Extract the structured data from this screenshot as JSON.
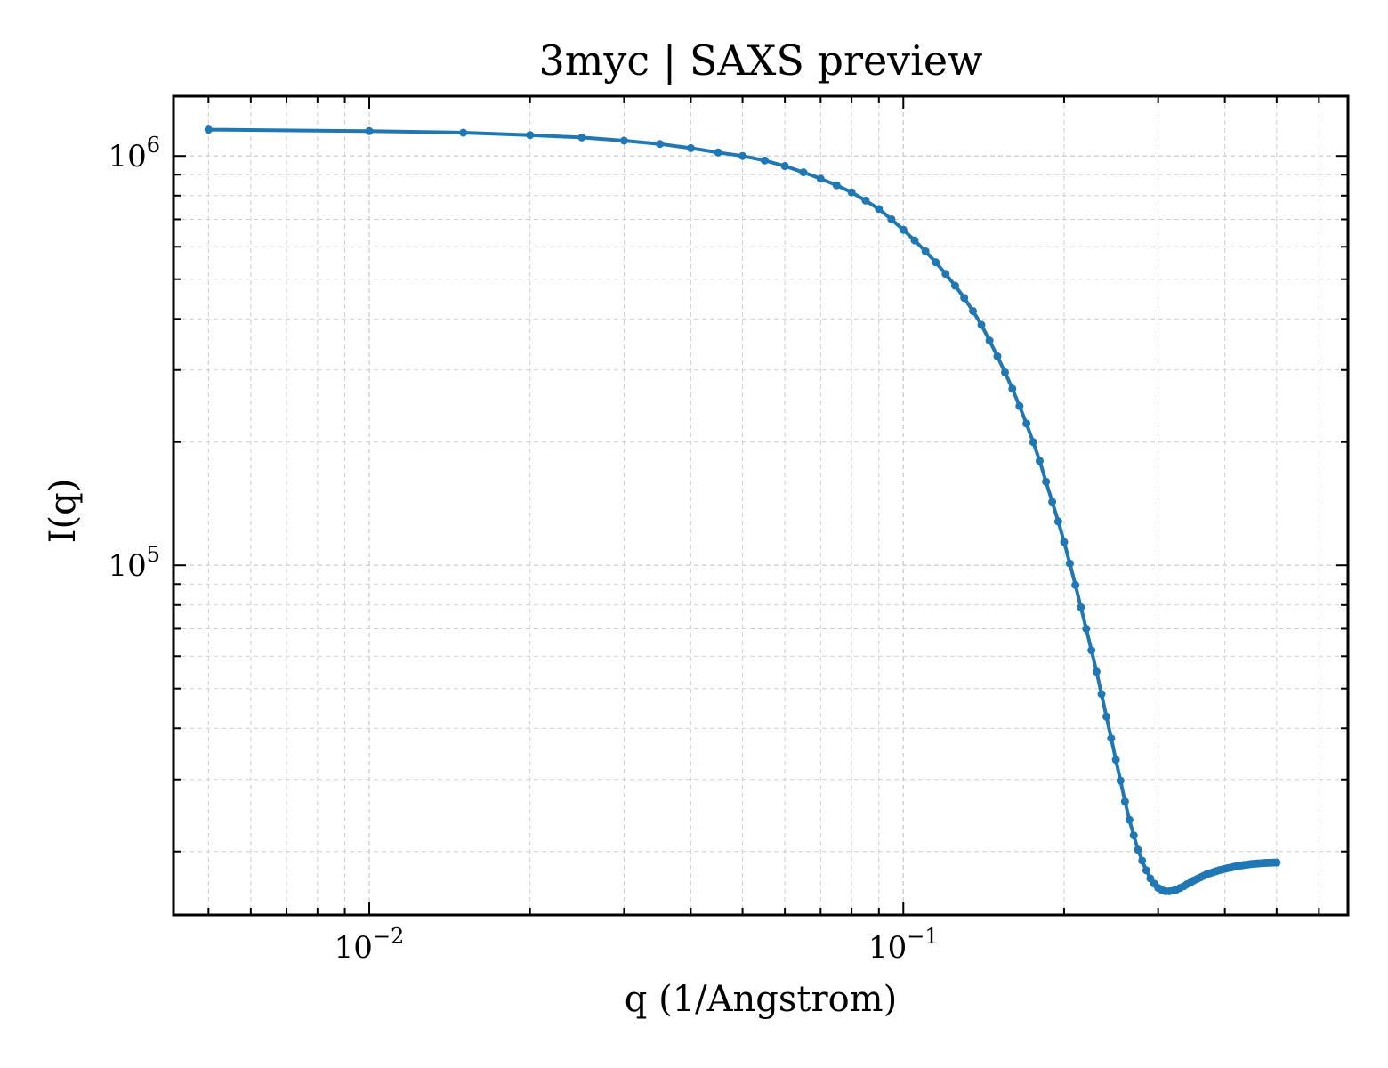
{
  "chart_data": {
    "type": "line",
    "title": "3myc | SAXS preview",
    "xlabel": "q (1/Angstrom)",
    "ylabel": "I(q)",
    "xscale": "log",
    "yscale": "log",
    "xlim": [
      0.0043,
      0.68
    ],
    "ylim": [
      14000,
      1400000
    ],
    "grid": true,
    "line_color": "#1f77b4",
    "x_tick_labels": [
      {
        "base": "10",
        "exp": "−2",
        "value": 0.01
      },
      {
        "base": "10",
        "exp": "−1",
        "value": 0.1
      }
    ],
    "y_tick_labels": [
      {
        "base": "10",
        "exp": "5",
        "value": 100000
      },
      {
        "base": "10",
        "exp": "6",
        "value": 1000000
      }
    ],
    "series": [
      {
        "x": [
          0.005,
          0.01,
          0.015,
          0.02,
          0.025,
          0.03,
          0.035,
          0.04,
          0.045,
          0.05,
          0.055,
          0.06,
          0.065,
          0.07,
          0.075,
          0.08,
          0.085,
          0.09,
          0.095,
          0.1,
          0.105,
          0.11,
          0.115,
          0.12,
          0.125,
          0.13,
          0.135,
          0.14,
          0.145,
          0.15,
          0.155,
          0.16,
          0.165,
          0.17,
          0.175,
          0.18,
          0.185,
          0.19,
          0.195,
          0.2,
          0.205,
          0.21,
          0.215,
          0.22,
          0.225,
          0.23,
          0.235,
          0.24,
          0.245,
          0.25,
          0.255,
          0.26,
          0.265,
          0.27,
          0.275,
          0.28,
          0.285,
          0.29,
          0.295,
          0.3,
          0.305,
          0.31,
          0.315,
          0.32,
          0.325,
          0.33,
          0.335,
          0.34,
          0.345,
          0.35,
          0.355,
          0.36,
          0.365,
          0.37,
          0.375,
          0.38,
          0.385,
          0.39,
          0.395,
          0.4,
          0.405,
          0.41,
          0.415,
          0.42,
          0.425,
          0.43,
          0.435,
          0.44,
          0.445,
          0.45,
          0.455,
          0.46,
          0.465,
          0.47,
          0.475,
          0.48,
          0.485,
          0.49,
          0.495,
          0.5
        ],
        "y": [
          1160000,
          1150000,
          1140000,
          1125000,
          1110000,
          1090000,
          1070000,
          1045000,
          1020000,
          1000000,
          975000,
          945000,
          912000,
          880000,
          848000,
          815000,
          778000,
          742000,
          700000,
          660000,
          622000,
          585000,
          550000,
          515000,
          482000,
          450000,
          418000,
          387000,
          354000,
          324000,
          296000,
          270000,
          245000,
          222000,
          200000,
          180000,
          160000,
          143000,
          128000,
          114000,
          101000,
          89500,
          79000,
          70000,
          62000,
          55000,
          48500,
          42700,
          37800,
          33500,
          29800,
          26500,
          23900,
          21900,
          20200,
          19000,
          18000,
          17200,
          16700,
          16300,
          16100,
          16000,
          16000,
          16050,
          16150,
          16300,
          16450,
          16650,
          16800,
          17000,
          17150,
          17300,
          17450,
          17600,
          17700,
          17800,
          17900,
          18000,
          18070,
          18150,
          18220,
          18280,
          18340,
          18400,
          18450,
          18500,
          18550,
          18580,
          18620,
          18660,
          18680,
          18700,
          18720,
          18740,
          18760,
          18770,
          18780,
          18790,
          18800,
          18800
        ]
      }
    ]
  }
}
